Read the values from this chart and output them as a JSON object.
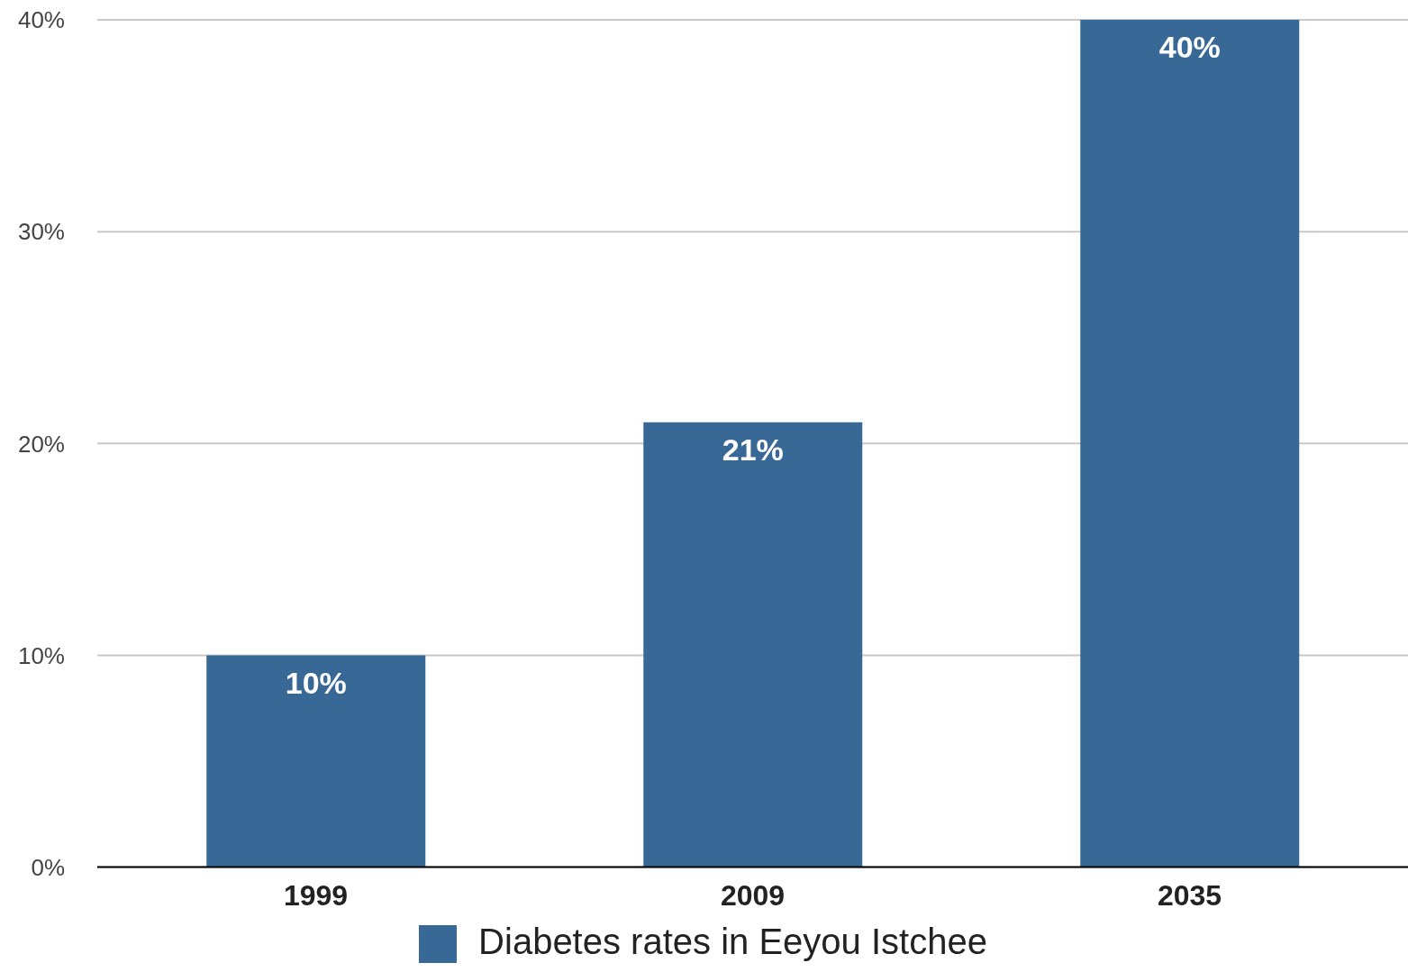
{
  "chart_data": {
    "type": "bar",
    "categories": [
      "1999",
      "2009",
      "2035"
    ],
    "series": [
      {
        "name": "Diabetes rates in Eeyou Istchee",
        "color": "#386895",
        "values": [
          10,
          21,
          40
        ],
        "value_labels": [
          "10%",
          "21%",
          "40%"
        ]
      }
    ],
    "ylim": [
      0,
      40
    ],
    "yticks": [
      {
        "value": 0,
        "label": "0%"
      },
      {
        "value": 10,
        "label": "10%"
      },
      {
        "value": 20,
        "label": "20%"
      },
      {
        "value": 30,
        "label": "30%"
      },
      {
        "value": 40,
        "label": "40%"
      }
    ],
    "grid": "y",
    "legend": "bottom"
  }
}
